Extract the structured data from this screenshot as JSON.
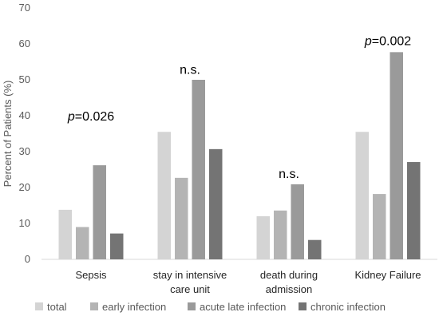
{
  "chart_data": {
    "type": "bar",
    "title": "",
    "xlabel": "",
    "ylabel": "Percent of Patients (%)",
    "ylim": [
      0,
      70
    ],
    "yticks": [
      0,
      10,
      20,
      30,
      40,
      50,
      60,
      70
    ],
    "grid": false,
    "legend_position": "bottom",
    "categories": [
      [
        "Sepsis"
      ],
      [
        "stay in intensive",
        "care unit"
      ],
      [
        "death during",
        "admission"
      ],
      [
        "Kidney Failure"
      ]
    ],
    "series": [
      {
        "name": "total",
        "color": "#d4d4d4",
        "values": [
          13.8,
          35.5,
          12,
          35.5
        ]
      },
      {
        "name": "early infection",
        "color": "#b4b4b4",
        "values": [
          9,
          22.7,
          13.6,
          18.2
        ]
      },
      {
        "name": "acute late infection",
        "color": "#9a9a9a",
        "values": [
          26.2,
          50,
          20.9,
          57.7
        ]
      },
      {
        "name": "chronic infection",
        "color": "#747474",
        "values": [
          7.2,
          30.7,
          5.4,
          27.1
        ]
      }
    ],
    "annotations": [
      {
        "category": 0,
        "italic_prefix": "p",
        "text": "=0.026",
        "y": 40
      },
      {
        "category": 1,
        "italic_prefix": "",
        "text": "n.s.",
        "y": 53
      },
      {
        "category": 2,
        "italic_prefix": "",
        "text": "n.s.",
        "y": 24
      },
      {
        "category": 3,
        "italic_prefix": "p",
        "text": "=0.002",
        "y": 61
      }
    ]
  }
}
